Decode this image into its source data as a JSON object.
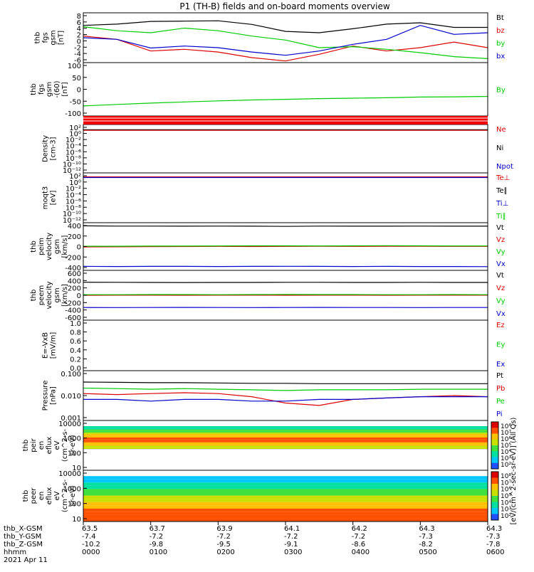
{
  "title": "P1 (TH-B) fields and on-board moments overview",
  "footer": {
    "date": "2021 Apr 11",
    "row_labels": [
      "thb_X-GSM",
      "thb_Y-GSM",
      "thb_Z-GSM",
      "hhmm"
    ],
    "columns": [
      {
        "vals": [
          "63.5",
          "-7.4",
          "-10.2",
          "0000"
        ]
      },
      {
        "vals": [
          "63.7",
          "-7.2",
          "-9.8",
          "0100"
        ]
      },
      {
        "vals": [
          "63.9",
          "-7.2",
          "-9.5",
          "0200"
        ]
      },
      {
        "vals": [
          "64.1",
          "-7.2",
          "-9.1",
          "0300"
        ]
      },
      {
        "vals": [
          "64.2",
          "-7.2",
          "-8.6",
          "0400"
        ]
      },
      {
        "vals": [
          "64.3",
          "-7.3",
          "-8.2",
          "0500"
        ]
      },
      {
        "vals": [
          "64.3",
          "-7.3",
          "-7.8",
          "0600"
        ]
      }
    ]
  },
  "colorbar": {
    "ticks": [
      "10⁸",
      "10⁷",
      "10⁶",
      "10⁵",
      "10⁴",
      "10³",
      "10²"
    ],
    "label": "[eV/(cm^2-sec-sr-eV)] (All Qs)"
  },
  "chart_data": [
    {
      "type": "line",
      "ylabel": "thb fgs gsm [nT]",
      "yticks": [
        "8",
        "6",
        "4",
        "2",
        "0",
        "-2",
        "-4",
        "-6"
      ],
      "ylim": [
        -6,
        9
      ],
      "legend": [
        {
          "name": "Bt",
          "color": "#000000"
        },
        {
          "name": "bz",
          "color": "#dd0000"
        },
        {
          "name": "by",
          "color": "#00cc00"
        },
        {
          "name": "bx",
          "color": "#0000cc"
        }
      ],
      "series": [
        {
          "name": "Bt",
          "color": "#000000",
          "values": [
            5.2,
            5.6,
            6.4,
            6.5,
            6.6,
            5.5,
            3.4,
            3.0,
            4.2,
            5.6,
            6.0,
            4.6,
            4.6
          ]
        },
        {
          "name": "bz",
          "color": "#dd0000",
          "values": [
            2.0,
            1.0,
            -2.5,
            -2.0,
            -2.8,
            -4.5,
            -5.5,
            -3.5,
            -1.0,
            -2.5,
            -1.5,
            0.2,
            -1.5
          ]
        },
        {
          "name": "by",
          "color": "#00cc00",
          "values": [
            4.8,
            3.6,
            3.0,
            4.4,
            3.6,
            2.0,
            0.8,
            -1.5,
            -1.2,
            -2.0,
            -3.0,
            -4.2,
            -4.8
          ]
        },
        {
          "name": "bx",
          "color": "#0000cc",
          "values": [
            1.5,
            1.0,
            -1.6,
            -1.0,
            -1.5,
            -2.8,
            -3.8,
            -2.5,
            -0.5,
            1.0,
            5.2,
            2.5,
            3.0
          ]
        }
      ]
    },
    {
      "type": "line",
      "ylabel": "thb fgs gsm -(60) [nT]",
      "yticks": [
        "100",
        "50",
        "0",
        "-50",
        "-100"
      ],
      "ylim": [
        -140,
        100
      ],
      "legend": [
        {
          "name": "By",
          "color": "#00cc00"
        }
      ],
      "series": [
        {
          "name": "By",
          "color": "#00cc00",
          "values": [
            -95,
            -88,
            -82,
            -77,
            -72,
            -68,
            -65,
            -62,
            -60,
            -58,
            -55,
            -54,
            -52
          ]
        }
      ]
    },
    {
      "type": "line",
      "ylabel": "Density [cm-3]",
      "yticks": [
        "10²",
        "10⁰",
        "10⁻²",
        "10⁻⁴",
        "10⁻⁶",
        "10⁻⁸",
        "10⁻¹⁰",
        "10⁻¹²"
      ],
      "ylim": [
        -13,
        2
      ],
      "legend": [
        {
          "name": "Ne",
          "color": "#dd0000"
        },
        {
          "name": "Ni",
          "color": "#000000"
        },
        {
          "name": "Npot",
          "color": "#0000cc"
        }
      ],
      "series": [
        {
          "name": "Ni",
          "color": "#000000",
          "values": [
            0.4,
            0.4,
            0.4,
            0.4,
            0.4,
            0.4,
            0.4,
            0.4,
            0.4,
            0.4,
            0.4,
            0.4,
            0.4
          ]
        },
        {
          "name": "Ne",
          "color": "#dd0000",
          "values": [
            0.2,
            0.2,
            0.2,
            0.2,
            0.2,
            0.2,
            0.2,
            0.2,
            0.2,
            0.2,
            0.2,
            0.2,
            0.2
          ]
        }
      ]
    },
    {
      "type": "line",
      "ylabel": "moqt3 [eV]",
      "yticks": [
        "10²",
        "10⁰",
        "10⁻²",
        "10⁻⁴",
        "10⁻⁶",
        "10⁻⁸",
        "10⁻¹⁰",
        "10⁻¹²"
      ],
      "ylim": [
        -13,
        2
      ],
      "legend": [
        {
          "name": "Te⊥",
          "color": "#dd0000"
        },
        {
          "name": "Te∥",
          "color": "#000000"
        },
        {
          "name": "Ti⊥",
          "color": "#0000cc"
        },
        {
          "name": "Ti∥",
          "color": "#00cc00"
        }
      ],
      "series": [
        {
          "name": "Te⊥",
          "color": "#dd0000",
          "values": [
            0.8,
            0.8,
            0.8,
            0.8,
            0.8,
            0.8,
            0.8,
            0.8,
            0.8,
            0.8,
            0.8,
            0.8,
            0.8
          ]
        },
        {
          "name": "Ti⊥",
          "color": "#0000cc",
          "values": [
            0.6,
            0.6,
            0.6,
            0.6,
            0.6,
            0.6,
            0.6,
            0.6,
            0.6,
            0.6,
            0.6,
            0.6,
            0.6
          ]
        }
      ]
    },
    {
      "type": "line",
      "ylabel": "thb peim velocity gsm [km/s]",
      "yticks": [
        "400",
        "200",
        "0",
        "-200",
        "-400"
      ],
      "ylim": [
        -420,
        420
      ],
      "legend": [
        {
          "name": "Vt",
          "color": "#000000"
        },
        {
          "name": "Vz",
          "color": "#dd0000"
        },
        {
          "name": "Vy",
          "color": "#00cc00"
        },
        {
          "name": "Vx",
          "color": "#0000cc"
        }
      ],
      "series": [
        {
          "name": "Vt",
          "color": "#000000",
          "values": [
            365,
            360,
            360,
            358,
            360,
            358,
            355,
            360,
            358,
            358,
            360,
            358,
            358
          ]
        },
        {
          "name": "Vz",
          "color": "#dd0000",
          "values": [
            -8,
            -5,
            -3,
            0,
            2,
            0,
            3,
            5,
            3,
            5,
            5,
            3,
            2
          ]
        },
        {
          "name": "Vy",
          "color": "#00cc00",
          "values": [
            5,
            5,
            8,
            8,
            10,
            12,
            12,
            10,
            12,
            15,
            12,
            10,
            10
          ]
        },
        {
          "name": "Vx",
          "color": "#0000cc",
          "values": [
            -350,
            -352,
            -350,
            -350,
            -352,
            -350,
            -348,
            -350,
            -352,
            -350,
            -352,
            -352,
            -355
          ]
        }
      ]
    },
    {
      "type": "line",
      "ylabel": "thb peem velocity gsm [km/s]",
      "yticks": [
        "600",
        "400",
        "200",
        "0",
        "-200",
        "-400",
        "-600"
      ],
      "ylim": [
        -650,
        650
      ],
      "legend": [
        {
          "name": "Vt",
          "color": "#000000"
        },
        {
          "name": "Vz",
          "color": "#dd0000"
        },
        {
          "name": "Vy",
          "color": "#00cc00"
        },
        {
          "name": "Vx",
          "color": "#0000cc"
        }
      ],
      "series": [
        {
          "name": "Vt",
          "color": "#000000",
          "values": [
            340,
            338,
            335,
            332,
            335,
            335,
            338,
            338,
            335,
            335,
            338,
            335,
            335
          ]
        },
        {
          "name": "Vz",
          "color": "#dd0000",
          "values": [
            0,
            2,
            2,
            0,
            2,
            2,
            0,
            2,
            2,
            0,
            2,
            2,
            2
          ]
        },
        {
          "name": "Vy",
          "color": "#00cc00",
          "values": [
            15,
            15,
            18,
            18,
            15,
            18,
            20,
            18,
            18,
            15,
            15,
            18,
            15
          ]
        },
        {
          "name": "Vx",
          "color": "#0000cc",
          "values": [
            -320,
            -322,
            -320,
            -318,
            -320,
            -322,
            -320,
            -318,
            -320,
            -320,
            -322,
            -320,
            -320
          ]
        }
      ]
    },
    {
      "type": "line",
      "ylabel": "E=-VxB [mV/m]",
      "yticks": [
        "1.0",
        "0.8",
        "0.6",
        "0.4",
        "0.2",
        "0.0"
      ],
      "ylim": [
        0,
        1
      ],
      "legend": [
        {
          "name": "Ez",
          "color": "#dd0000"
        },
        {
          "name": "Ey",
          "color": "#00cc00"
        },
        {
          "name": "Ex",
          "color": "#0000cc"
        }
      ],
      "series": []
    },
    {
      "type": "line",
      "ylabel": "Pressure [nPa]",
      "yticks": [
        "0.100",
        "0.010",
        "0.001"
      ],
      "ylim": [
        -3,
        -1
      ],
      "log": true,
      "legend": [
        {
          "name": "Pt",
          "color": "#000000"
        },
        {
          "name": "Pb",
          "color": "#dd0000"
        },
        {
          "name": "Pe",
          "color": "#00cc00"
        },
        {
          "name": "Pi",
          "color": "#0000cc"
        }
      ],
      "series": [
        {
          "name": "Pt",
          "color": "#000000",
          "values": [
            0.035,
            0.034,
            0.033,
            0.033,
            0.032,
            0.031,
            0.031,
            0.03,
            0.03,
            0.03,
            0.03,
            0.03,
            0.03
          ]
        },
        {
          "name": "Pe",
          "color": "#00cc00",
          "values": [
            0.02,
            0.019,
            0.018,
            0.019,
            0.018,
            0.017,
            0.016,
            0.017,
            0.017,
            0.017,
            0.018,
            0.018,
            0.018
          ]
        },
        {
          "name": "Pb",
          "color": "#dd0000",
          "values": [
            0.012,
            0.011,
            0.012,
            0.013,
            0.012,
            0.009,
            0.005,
            0.004,
            0.007,
            0.008,
            0.009,
            0.01,
            0.009
          ]
        },
        {
          "name": "Pi",
          "color": "#0000cc",
          "values": [
            0.007,
            0.007,
            0.006,
            0.007,
            0.007,
            0.006,
            0.006,
            0.007,
            0.007,
            0.008,
            0.009,
            0.009,
            0.009
          ]
        }
      ]
    },
    {
      "type": "heatmap",
      "ylabel": "thb peir en eflux eV (cm^2-s- sr-eV)",
      "yticks": [
        "10000",
        "1000",
        "100",
        "10"
      ],
      "ylim": [
        0.7,
        4.2
      ],
      "log": true,
      "band_floor": 2.2,
      "band_peak": 2.8
    },
    {
      "type": "heatmap",
      "ylabel": "thb peer en eflux eV (cm^2-s- sr-eV)",
      "yticks": [
        "10000",
        "1000",
        "100",
        "10"
      ],
      "ylim": [
        0.7,
        4.2
      ],
      "log": true,
      "band_floor": 0.7,
      "band_peak": 1.2
    }
  ]
}
